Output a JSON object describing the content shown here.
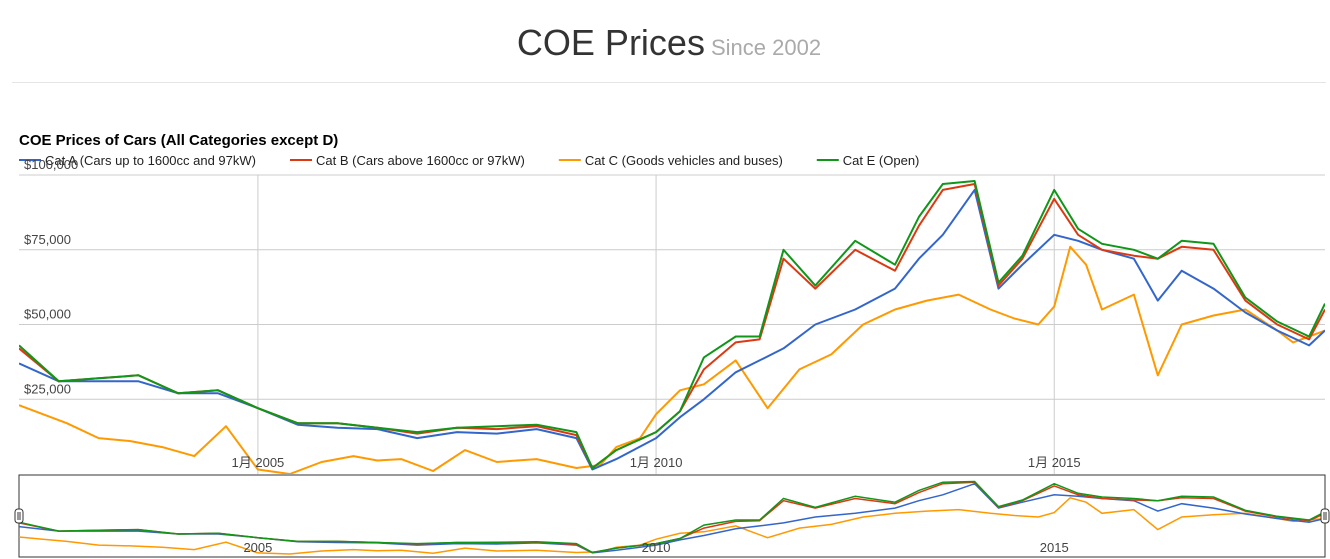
{
  "header": {
    "title": "COE Prices",
    "subtitle": "Since 2002"
  },
  "chart_data": {
    "type": "line",
    "title": "COE Prices of Cars (All Categories except D)",
    "x_range": [
      2002.0,
      2018.4
    ],
    "ylim": [
      0,
      100000
    ],
    "y_ticks": [
      {
        "value": 25000,
        "label": "$25,000"
      },
      {
        "value": 50000,
        "label": "$50,000"
      },
      {
        "value": 75000,
        "label": "$75,000"
      },
      {
        "value": 100000,
        "label": "$100,000"
      }
    ],
    "x_ticks": [
      {
        "value": 2005.0,
        "label": "1月 2005"
      },
      {
        "value": 2010.0,
        "label": "1月 2010"
      },
      {
        "value": 2015.0,
        "label": "1月 2015"
      }
    ],
    "navigator_x_labels": [
      {
        "value": 2005.0,
        "label": "2005"
      },
      {
        "value": 2010.0,
        "label": "2010"
      },
      {
        "value": 2015.0,
        "label": "2015"
      }
    ],
    "grid": true,
    "legend_position": "top",
    "series": [
      {
        "name": "Cat A (Cars up to 1600cc and 97kW)",
        "color": "#3366cc",
        "x": [
          2002.0,
          2002.5,
          2003.0,
          2003.5,
          2004.0,
          2004.5,
          2005.0,
          2005.5,
          2006.0,
          2006.5,
          2007.0,
          2007.5,
          2008.0,
          2008.5,
          2009.0,
          2009.2,
          2009.5,
          2010.0,
          2010.3,
          2010.6,
          2011.0,
          2011.3,
          2011.6,
          2012.0,
          2012.5,
          2013.0,
          2013.3,
          2013.6,
          2014.0,
          2014.3,
          2014.6,
          2015.0,
          2015.3,
          2015.6,
          2016.0,
          2016.3,
          2016.6,
          2017.0,
          2017.4,
          2017.8,
          2018.2,
          2018.4
        ],
        "y": [
          37000,
          31000,
          31000,
          31000,
          27000,
          27000,
          22000,
          16500,
          15500,
          15000,
          12000,
          14000,
          13500,
          15000,
          12000,
          1500,
          5000,
          12000,
          19000,
          25000,
          34000,
          38000,
          42000,
          50000,
          55000,
          62000,
          72000,
          80000,
          95000,
          62000,
          70000,
          80000,
          78000,
          75000,
          72000,
          58000,
          68000,
          62000,
          54000,
          48000,
          43000,
          48000
        ]
      },
      {
        "name": "Cat B (Cars above 1600cc or 97kW)",
        "color": "#dc3912",
        "x": [
          2002.0,
          2002.5,
          2003.0,
          2003.5,
          2004.0,
          2004.5,
          2005.0,
          2005.5,
          2006.0,
          2006.5,
          2007.0,
          2007.5,
          2008.0,
          2008.5,
          2009.0,
          2009.2,
          2009.5,
          2010.0,
          2010.3,
          2010.6,
          2011.0,
          2011.3,
          2011.6,
          2012.0,
          2012.5,
          2013.0,
          2013.3,
          2013.6,
          2014.0,
          2014.3,
          2014.6,
          2015.0,
          2015.3,
          2015.6,
          2016.0,
          2016.3,
          2016.6,
          2017.0,
          2017.4,
          2017.8,
          2018.2,
          2018.4
        ],
        "y": [
          42000,
          31000,
          32000,
          33000,
          27000,
          28000,
          22000,
          17000,
          17000,
          15500,
          13500,
          15500,
          15000,
          16000,
          13000,
          2000,
          8000,
          14000,
          21000,
          35000,
          44000,
          45000,
          72000,
          62000,
          75000,
          68000,
          83000,
          95000,
          97000,
          63000,
          72000,
          92000,
          80000,
          75000,
          73000,
          72000,
          76000,
          75000,
          58000,
          50000,
          45000,
          55000
        ]
      },
      {
        "name": "Cat C (Goods vehicles and buses)",
        "color": "#ff9900",
        "x": [
          2002.0,
          2002.3,
          2002.6,
          2003.0,
          2003.4,
          2003.8,
          2004.2,
          2004.6,
          2005.0,
          2005.4,
          2005.8,
          2006.2,
          2006.5,
          2006.8,
          2007.2,
          2007.6,
          2008.0,
          2008.5,
          2009.0,
          2009.3,
          2009.5,
          2009.8,
          2010.0,
          2010.3,
          2010.6,
          2011.0,
          2011.4,
          2011.8,
          2012.2,
          2012.6,
          2013.0,
          2013.4,
          2013.8,
          2014.2,
          2014.5,
          2014.8,
          2015.0,
          2015.2,
          2015.4,
          2015.6,
          2016.0,
          2016.3,
          2016.6,
          2017.0,
          2017.4,
          2017.8,
          2018.0,
          2018.4
        ],
        "y": [
          23000,
          20000,
          17000,
          12000,
          11000,
          9000,
          6000,
          16000,
          1500,
          0,
          4000,
          6000,
          4500,
          5000,
          1000,
          8000,
          4000,
          5000,
          2000,
          3000,
          9000,
          12000,
          20000,
          28000,
          30000,
          38000,
          22000,
          35000,
          40000,
          50000,
          55000,
          58000,
          60000,
          55000,
          52000,
          50000,
          56000,
          76000,
          70000,
          55000,
          60000,
          33000,
          50000,
          53000,
          55000,
          48000,
          44000,
          48000
        ]
      },
      {
        "name": "Cat E (Open)",
        "color": "#109618",
        "x": [
          2002.0,
          2002.5,
          2003.0,
          2003.5,
          2004.0,
          2004.5,
          2005.0,
          2005.5,
          2006.0,
          2006.5,
          2007.0,
          2007.5,
          2008.0,
          2008.5,
          2009.0,
          2009.2,
          2009.5,
          2010.0,
          2010.3,
          2010.6,
          2011.0,
          2011.3,
          2011.6,
          2012.0,
          2012.5,
          2013.0,
          2013.3,
          2013.6,
          2014.0,
          2014.3,
          2014.6,
          2015.0,
          2015.3,
          2015.6,
          2016.0,
          2016.3,
          2016.6,
          2017.0,
          2017.4,
          2017.8,
          2018.2,
          2018.4
        ],
        "y": [
          43000,
          31000,
          32000,
          33000,
          27000,
          28000,
          22000,
          17000,
          17000,
          15500,
          14000,
          15500,
          16000,
          16500,
          14000,
          2000,
          8000,
          14000,
          21000,
          39000,
          46000,
          46000,
          75000,
          63000,
          78000,
          70000,
          86000,
          97000,
          98000,
          64000,
          73000,
          95000,
          82000,
          77000,
          75000,
          72000,
          78000,
          77000,
          59000,
          51000,
          46000,
          57000
        ]
      }
    ]
  }
}
